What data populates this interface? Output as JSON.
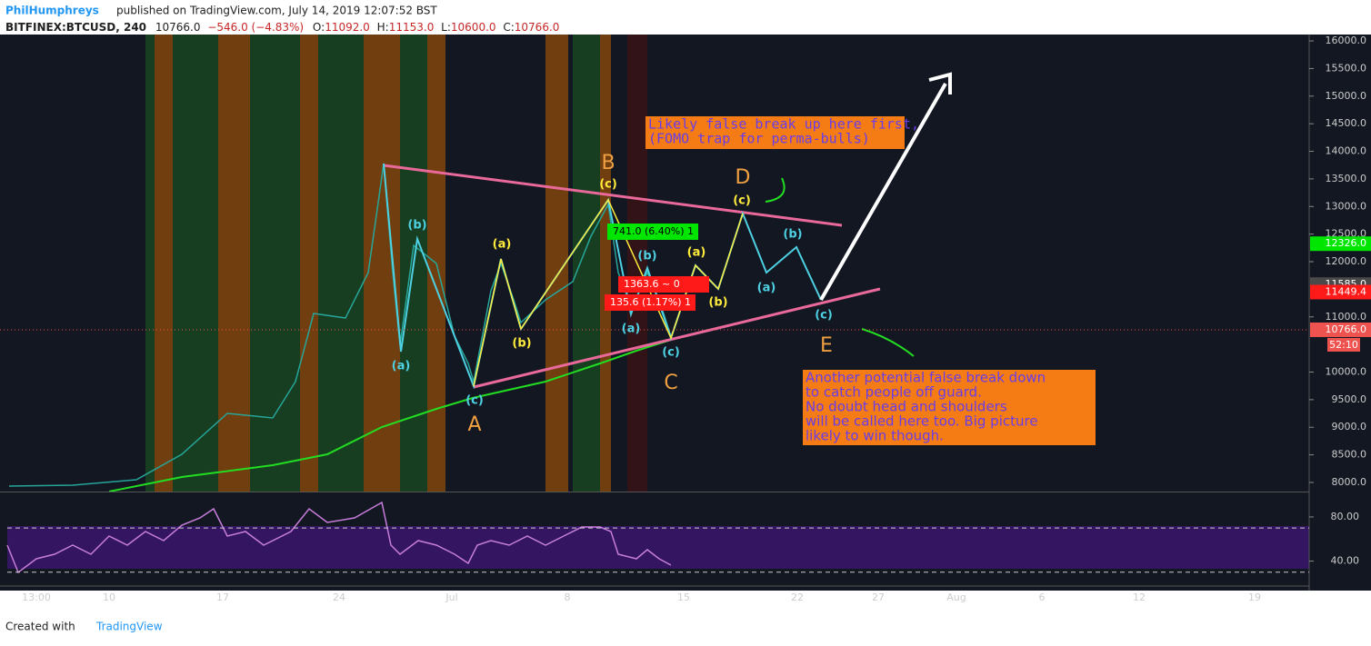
{
  "header": {
    "author": "PhilHumphreys",
    "published": "published on TradingView.com, July 14, 2019 12:07:52 BST",
    "symbol": "BITFINEX:BTCUSD, 240",
    "last": "10766.0",
    "change": "−546.0 (−4.83%)",
    "open_label": "O:",
    "open": "11092.0",
    "high_label": "H:",
    "high": "11153.0",
    "low_label": "L:",
    "low": "10600.0",
    "close_label": "C:",
    "close": "10766.0"
  },
  "price_scale": {
    "range": [
      7835,
      16116
    ],
    "ticks": [
      {
        "value": 16000,
        "label": "16000.0"
      },
      {
        "value": 15500,
        "label": "15500.0"
      },
      {
        "value": 15000,
        "label": "15000.0"
      },
      {
        "value": 14500,
        "label": "14500.0"
      },
      {
        "value": 14000,
        "label": "14000.0"
      },
      {
        "value": 13500,
        "label": "13500.0"
      },
      {
        "value": 13000,
        "label": "13000.0"
      },
      {
        "value": 12500,
        "label": "12500.0"
      },
      {
        "value": 12000,
        "label": "12000.0"
      },
      {
        "value": 11000,
        "label": "11000.0"
      },
      {
        "value": 10000,
        "label": "10000.0"
      },
      {
        "value": 9500,
        "label": "9500.0"
      },
      {
        "value": 9000,
        "label": "9000.0"
      },
      {
        "value": 8500,
        "label": "8500.0"
      },
      {
        "value": 8000,
        "label": "8000.0"
      }
    ],
    "tags": [
      {
        "value": 12326,
        "label": "12326.0",
        "color": "#00e600"
      },
      {
        "value": 11585,
        "label": "11585.0",
        "color": "#4a4a4a"
      },
      {
        "value": 11449.4,
        "label": "11449.4",
        "color": "#ff1a1a"
      },
      {
        "value": 10766,
        "label": "10766.0",
        "color": "#ef5350"
      }
    ],
    "countdown": "52:10"
  },
  "rsi_scale": {
    "range": [
      17.4,
      95.6
    ],
    "ticks": [
      {
        "value": 80,
        "label": "80.00"
      },
      {
        "value": 40,
        "label": "40.00"
      }
    ],
    "bands": [
      70,
      30
    ]
  },
  "time_axis": [
    "13:00",
    "10",
    "17",
    "24",
    "Jul",
    "8",
    "15",
    "22",
    "27",
    "Aug",
    "6",
    "12",
    "19"
  ],
  "waves": {
    "cyan": [
      "(b)",
      "(a)",
      "(c)",
      "(b)",
      "(a)",
      "(c)",
      "(a)",
      "(b)",
      "(c)"
    ],
    "yellow": [
      "(a)",
      "(b)",
      "(c)",
      "(a)",
      "(b)",
      "(c)"
    ],
    "major": [
      "A",
      "B",
      "C",
      "D",
      "E"
    ]
  },
  "measures": [
    "741.0 (6.40%) 1",
    "1363.6 ~ 0",
    "135.6 (1.17%) 1"
  ],
  "notes": [
    [
      "Likely false break up here first,",
      "(FOMO trap for perma-bulls)"
    ],
    [
      "Another potential false break down",
      "to catch people off guard.",
      "No doubt head and shoulders",
      "will be called here too. Big picture",
      "likely to win though."
    ]
  ],
  "footer": {
    "created": "Created with",
    "brand": "TradingView"
  }
}
